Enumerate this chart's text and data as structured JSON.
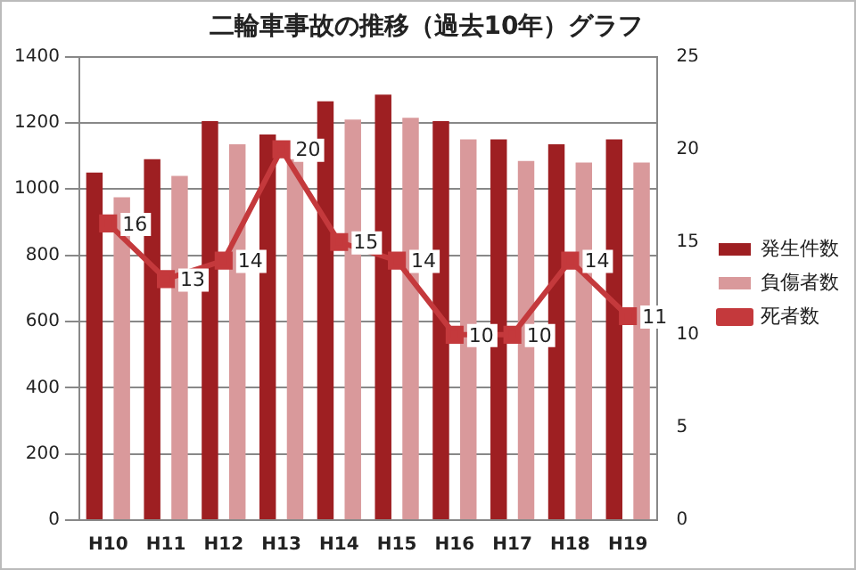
{
  "chart_data": {
    "type": "bar",
    "title": "二輪車事故の推移（過去10年）グラフ",
    "categories": [
      "H10",
      "H11",
      "H12",
      "H13",
      "H14",
      "H15",
      "H16",
      "H17",
      "H18",
      "H19"
    ],
    "series": [
      {
        "name": "発生件数",
        "color": "#9e1f22",
        "values": [
          1050,
          1090,
          1205,
          1165,
          1265,
          1285,
          1205,
          1150,
          1135,
          1150
        ]
      },
      {
        "name": "負傷者数",
        "color": "#d9999b",
        "values": [
          975,
          1040,
          1135,
          1090,
          1210,
          1215,
          1150,
          1085,
          1080,
          1080
        ]
      },
      {
        "name": "死者数",
        "type": "line",
        "axis": "y2",
        "color": "#c4393c",
        "marker": "square",
        "values": [
          16,
          13,
          14,
          20,
          15,
          14,
          10,
          10,
          14,
          11
        ],
        "value_labels": [
          "16",
          "13",
          "14",
          "20",
          "15",
          "14",
          "10",
          "10",
          "14",
          "11"
        ]
      }
    ],
    "ylim": [
      0,
      1400
    ],
    "yticks": [
      0,
      200,
      400,
      600,
      800,
      1000,
      1200,
      1400
    ],
    "y2lim": [
      0,
      25
    ],
    "y2ticks": [
      0,
      5,
      10,
      15,
      20,
      25
    ],
    "grid": "y",
    "legend": "right"
  }
}
